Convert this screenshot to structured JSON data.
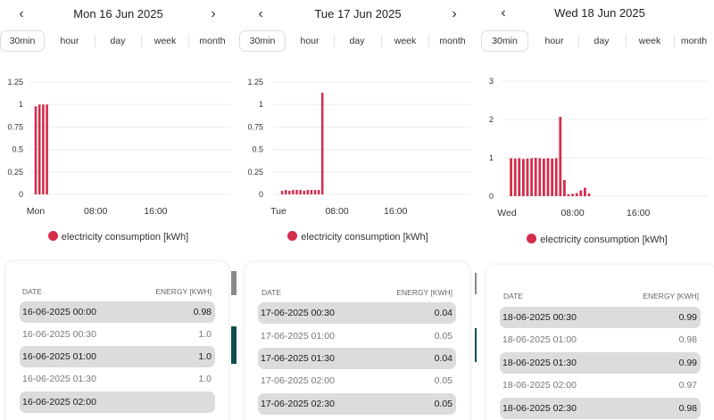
{
  "colors": {
    "bar": "#d42d4b",
    "row_shade": "#dcdcdc",
    "scroll_gray": "#8a8a8a",
    "scroll_teal": "#0d5050"
  },
  "tabs": [
    "30min",
    "hour",
    "day",
    "week",
    "month"
  ],
  "active_tab": "30min",
  "nav": {
    "prev_icon": "chevron-left-icon",
    "next_icon": "chevron-right-icon",
    "prev_label": "‹",
    "next_label": "›"
  },
  "legend_label": "electricity consumption [kWh]",
  "table_headers": {
    "date": "DATE",
    "energy": "ENERGY [KWH]"
  },
  "panels": [
    {
      "date_title": "Mon 16 Jun 2025",
      "chart_data": {
        "type": "bar",
        "series_name": "electricity consumption [kWh]",
        "y_ticks": [
          "0",
          "0.25",
          "0.5",
          "0.75",
          "1",
          "1.25"
        ],
        "ylim": [
          0,
          1.25
        ],
        "x_ticks": [
          "Mon",
          "08:00",
          "16:00"
        ],
        "x_tick_slots": [
          0,
          16,
          32
        ],
        "slots": [
          0,
          1,
          2,
          3
        ],
        "values": [
          0.98,
          1.0,
          1.0,
          1.0
        ]
      },
      "rows": [
        {
          "date": "16-06-2025 00:00",
          "energy": "0.98"
        },
        {
          "date": "16-06-2025 00:30",
          "energy": "1.0"
        },
        {
          "date": "16-06-2025 01:00",
          "energy": "1.0"
        },
        {
          "date": "16-06-2025 01:30",
          "energy": "1.0"
        },
        {
          "date": "16-06-2025 02:00",
          "energy": ""
        }
      ]
    },
    {
      "date_title": "Tue 17 Jun 2025",
      "chart_data": {
        "type": "bar",
        "series_name": "electricity consumption [kWh]",
        "y_ticks": [
          "0",
          "0.25",
          "0.5",
          "0.75",
          "1",
          "1.25"
        ],
        "ylim": [
          0,
          1.25
        ],
        "x_ticks": [
          "Tue",
          "08:00",
          "16:00"
        ],
        "x_tick_slots": [
          0,
          16,
          32
        ],
        "slots": [
          1,
          2,
          3,
          4,
          5,
          6,
          7,
          8,
          9,
          10,
          11,
          12
        ],
        "values": [
          0.04,
          0.05,
          0.04,
          0.05,
          0.05,
          0.05,
          0.04,
          0.05,
          0.05,
          0.05,
          0.05,
          1.13
        ]
      },
      "rows": [
        {
          "date": "17-06-2025 00:30",
          "energy": "0.04"
        },
        {
          "date": "17-06-2025 01:00",
          "energy": "0.05"
        },
        {
          "date": "17-06-2025 01:30",
          "energy": "0.04"
        },
        {
          "date": "17-06-2025 02:00",
          "energy": "0.05"
        },
        {
          "date": "17-06-2025 02:30",
          "energy": "0.05"
        }
      ]
    },
    {
      "date_title": "Wed 18 Jun 2025",
      "chart_data": {
        "type": "bar",
        "series_name": "electricity consumption [kWh]",
        "y_ticks": [
          "0",
          "1",
          "2",
          "3"
        ],
        "ylim": [
          0,
          3
        ],
        "x_ticks": [
          "Wed",
          "08:00",
          "16:00"
        ],
        "x_tick_slots": [
          0,
          16,
          32
        ],
        "slots": [
          1,
          2,
          3,
          4,
          5,
          6,
          7,
          8,
          9,
          10,
          11,
          12,
          13,
          14,
          15,
          16,
          17,
          18,
          19,
          20
        ],
        "values": [
          0.99,
          0.98,
          0.99,
          0.97,
          0.98,
          0.99,
          1.0,
          0.99,
          0.98,
          0.99,
          0.98,
          0.99,
          2.07,
          0.42,
          0.05,
          0.06,
          0.08,
          0.15,
          0.22,
          0.07
        ]
      },
      "rows": [
        {
          "date": "18-06-2025 00:30",
          "energy": "0.99"
        },
        {
          "date": "18-06-2025 01:00",
          "energy": "0.98"
        },
        {
          "date": "18-06-2025 01:30",
          "energy": "0.99"
        },
        {
          "date": "18-06-2025 02:00",
          "energy": "0.97"
        },
        {
          "date": "18-06-2025 02:30",
          "energy": "0.98"
        }
      ]
    }
  ]
}
